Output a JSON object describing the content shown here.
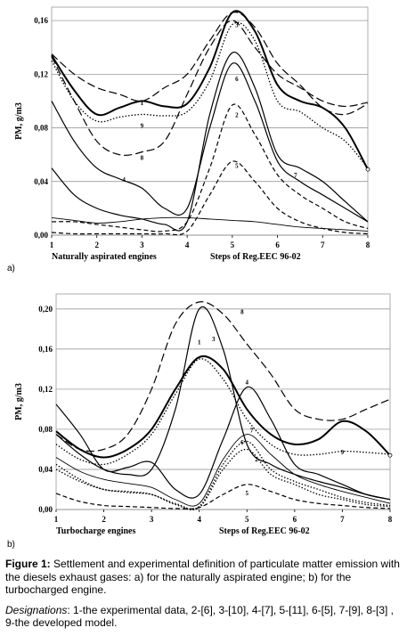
{
  "chart_data": [
    {
      "panel_label": "a)",
      "type": "line",
      "ylabel": "PM, g/m3",
      "xlabel": "Steps of Reg.EEC 96-02",
      "subtitle": "Naturally aspirated engines",
      "x": [
        1,
        2,
        3,
        4,
        5,
        6,
        7,
        8
      ],
      "xlim": [
        1,
        8
      ],
      "ylim": [
        0,
        0.17
      ],
      "yticks": [
        "0,00",
        "0,04",
        "0,08",
        "0,12",
        "0,16"
      ],
      "ytick_values": [
        0,
        0.04,
        0.08,
        0.12,
        0.16
      ],
      "xticks": [
        "1",
        "2",
        "3",
        "4",
        "5",
        "6",
        "7",
        "8"
      ],
      "series": [
        {
          "name": "1",
          "style": "solid-thick",
          "label_at": [
            3,
            0.097
          ],
          "x": [
            1,
            1.5,
            2,
            2.5,
            3,
            3.5,
            4,
            4.5,
            5,
            5.5,
            6,
            6.5,
            7,
            7.5,
            8
          ],
          "values": [
            0.134,
            0.108,
            0.09,
            0.095,
            0.1,
            0.096,
            0.098,
            0.125,
            0.166,
            0.152,
            0.112,
            0.1,
            0.095,
            0.08,
            0.049
          ]
        },
        {
          "name": "9",
          "style": "dotted",
          "label_at": [
            3,
            0.08
          ],
          "x": [
            1,
            1.5,
            2,
            2.5,
            3,
            3.5,
            4,
            4.5,
            5,
            5.5,
            6,
            6.5,
            7,
            7.5,
            8
          ],
          "values": [
            0.13,
            0.1,
            0.085,
            0.088,
            0.09,
            0.089,
            0.092,
            0.115,
            0.157,
            0.145,
            0.1,
            0.092,
            0.08,
            0.07,
            0.05
          ]
        },
        {
          "name": "2",
          "style": "dashed",
          "label_at": [
            5.1,
            0.088
          ],
          "x": [
            1,
            1.5,
            2,
            2.5,
            3,
            3.5,
            4,
            4.5,
            5,
            5.5,
            6,
            6.5,
            7,
            7.5,
            8
          ],
          "values": [
            0.01,
            0.01,
            0.008,
            0.006,
            0.004,
            0.003,
            0.01,
            0.05,
            0.097,
            0.075,
            0.045,
            0.03,
            0.02,
            0.01,
            0.005
          ]
        },
        {
          "name": "3",
          "style": "dashed-long",
          "label_at": [
            5.1,
            0.155
          ],
          "x": [
            1,
            1.5,
            2,
            2.5,
            3,
            3.5,
            4,
            4.5,
            5,
            5.5,
            6,
            6.5,
            7,
            7.5,
            8
          ],
          "values": [
            0.135,
            0.12,
            0.11,
            0.105,
            0.1,
            0.11,
            0.12,
            0.145,
            0.166,
            0.155,
            0.128,
            0.112,
            0.095,
            0.09,
            0.098
          ]
        },
        {
          "name": "4",
          "style": "solid",
          "label_at": [
            2.6,
            0.04
          ],
          "x": [
            1,
            1.5,
            2,
            2.5,
            3,
            3.5,
            4,
            4.5,
            5,
            5.5,
            6,
            6.5,
            7,
            7.5,
            8
          ],
          "values": [
            0.1,
            0.07,
            0.05,
            0.042,
            0.035,
            0.02,
            0.02,
            0.08,
            0.128,
            0.1,
            0.055,
            0.04,
            0.03,
            0.02,
            0.01
          ]
        },
        {
          "name": "5",
          "style": "dashed",
          "label_at": [
            5.1,
            0.05
          ],
          "x": [
            1,
            1.5,
            2,
            2.5,
            3,
            3.5,
            4,
            4.5,
            5,
            5.5,
            6,
            6.5,
            7,
            7.5,
            8
          ],
          "values": [
            0.002,
            0.001,
            0.001,
            0.001,
            0.001,
            0.001,
            0.003,
            0.03,
            0.055,
            0.04,
            0.02,
            0.01,
            0.005,
            0.002,
            0.001
          ]
        },
        {
          "name": "6",
          "style": "solid",
          "label_at": [
            5.1,
            0.115
          ],
          "x": [
            1,
            1.5,
            2,
            2.5,
            3,
            3.5,
            4,
            4.5,
            5,
            5.5,
            6,
            6.5,
            7,
            7.5,
            8
          ],
          "values": [
            0.05,
            0.03,
            0.02,
            0.015,
            0.012,
            0.008,
            0.01,
            0.09,
            0.136,
            0.11,
            0.06,
            0.05,
            0.04,
            0.025,
            0.01
          ]
        },
        {
          "name": "7",
          "style": "solid-thin",
          "label_at": [
            6.4,
            0.043
          ],
          "x": [
            1,
            1.5,
            2,
            2.5,
            3,
            3.5,
            4,
            4.5,
            5,
            5.5,
            6,
            6.5,
            7,
            7.5,
            8
          ],
          "values": [
            0.013,
            0.011,
            0.009,
            0.01,
            0.012,
            0.013,
            0.013,
            0.012,
            0.011,
            0.01,
            0.008,
            0.006,
            0.005,
            0.004,
            0.003
          ]
        },
        {
          "name": "8",
          "style": "dashed-long",
          "label_at": [
            3,
            0.056
          ],
          "x": [
            1,
            1.5,
            2,
            2.5,
            3,
            3.5,
            4,
            4.5,
            5,
            5.5,
            6,
            6.5,
            7,
            7.5,
            8
          ],
          "values": [
            0.133,
            0.1,
            0.07,
            0.06,
            0.062,
            0.07,
            0.105,
            0.14,
            0.16,
            0.14,
            0.12,
            0.11,
            0.1,
            0.096,
            0.099
          ]
        }
      ]
    },
    {
      "panel_label": "b)",
      "type": "line",
      "ylabel": "PM, g/m3",
      "xlabel": "Steps of Reg.EEC 96-02",
      "subtitle": "Turbocharge engines",
      "x": [
        1,
        2,
        3,
        4,
        5,
        6,
        7,
        8
      ],
      "xlim": [
        1,
        8
      ],
      "ylim": [
        0,
        0.215
      ],
      "yticks": [
        "0,00",
        "0,04",
        "0,08",
        "0,12",
        "0,16",
        "0,20"
      ],
      "ytick_values": [
        0,
        0.04,
        0.08,
        0.12,
        0.16,
        0.2
      ],
      "xticks": [
        "1",
        "2",
        "3",
        "4",
        "5",
        "6",
        "7",
        "8"
      ],
      "series": [
        {
          "name": "1",
          "style": "solid-thick",
          "label_at": [
            4,
            0.165
          ],
          "x": [
            1,
            1.5,
            2,
            2.5,
            3,
            3.5,
            4,
            4.5,
            5,
            5.5,
            6,
            6.5,
            7,
            7.5,
            8
          ],
          "values": [
            0.078,
            0.06,
            0.052,
            0.06,
            0.08,
            0.12,
            0.152,
            0.14,
            0.1,
            0.075,
            0.065,
            0.07,
            0.088,
            0.078,
            0.054
          ]
        },
        {
          "name": "9",
          "style": "dotted",
          "label_at": [
            7,
            0.055
          ],
          "x": [
            1,
            1.5,
            2,
            2.5,
            3,
            3.5,
            4,
            4.5,
            5,
            5.5,
            6,
            6.5,
            7,
            7.5,
            8
          ],
          "values": [
            0.065,
            0.05,
            0.045,
            0.055,
            0.075,
            0.115,
            0.15,
            0.13,
            0.09,
            0.065,
            0.055,
            0.055,
            0.058,
            0.057,
            0.055
          ]
        },
        {
          "name": "2",
          "style": "dotted",
          "label_at": [
            5.2,
            0.048
          ],
          "x": [
            1,
            1.5,
            2,
            2.5,
            3,
            3.5,
            4,
            4.5,
            5,
            5.5,
            6,
            6.5,
            7,
            7.5,
            8
          ],
          "values": [
            0.045,
            0.03,
            0.02,
            0.018,
            0.015,
            0.005,
            0.002,
            0.04,
            0.06,
            0.035,
            0.025,
            0.015,
            0.01,
            0.005,
            0.003
          ]
        },
        {
          "name": "3",
          "style": "solid",
          "label_at": [
            4.3,
            0.168
          ],
          "x": [
            1,
            1.5,
            2,
            2.5,
            3,
            3.5,
            4,
            4.5,
            5,
            5.5,
            6,
            6.5,
            7,
            7.5,
            8
          ],
          "values": [
            0.075,
            0.055,
            0.04,
            0.035,
            0.04,
            0.1,
            0.2,
            0.16,
            0.065,
            0.045,
            0.035,
            0.028,
            0.022,
            0.015,
            0.01
          ]
        },
        {
          "name": "4",
          "style": "solid",
          "label_at": [
            5,
            0.125
          ],
          "x": [
            1,
            1.5,
            2,
            2.5,
            3,
            3.5,
            4,
            4.5,
            5,
            5.5,
            6,
            6.5,
            7,
            7.5,
            8
          ],
          "values": [
            0.105,
            0.075,
            0.04,
            0.042,
            0.047,
            0.02,
            0.015,
            0.07,
            0.122,
            0.09,
            0.045,
            0.035,
            0.025,
            0.015,
            0.01
          ]
        },
        {
          "name": "5",
          "style": "dashed",
          "label_at": [
            5,
            0.014
          ],
          "x": [
            1,
            1.5,
            2,
            2.5,
            3,
            3.5,
            4,
            4.5,
            5,
            5.5,
            6,
            6.5,
            7,
            7.5,
            8
          ],
          "values": [
            0.016,
            0.008,
            0.004,
            0.003,
            0.002,
            0.001,
            0.002,
            0.015,
            0.025,
            0.018,
            0.01,
            0.006,
            0.004,
            0.002,
            0.001
          ]
        },
        {
          "name": "6",
          "style": "dotted",
          "label_at": [
            4.9,
            0.065
          ],
          "x": [
            1,
            1.5,
            2,
            2.5,
            3,
            3.5,
            4,
            4.5,
            5,
            5.5,
            6,
            6.5,
            7,
            7.5,
            8
          ],
          "values": [
            0.04,
            0.028,
            0.02,
            0.017,
            0.015,
            0.006,
            0.003,
            0.045,
            0.068,
            0.04,
            0.028,
            0.02,
            0.012,
            0.007,
            0.004
          ]
        },
        {
          "name": "7",
          "style": "solid-thin",
          "label_at": [
            5.1,
            0.077
          ],
          "x": [
            1,
            1.5,
            2,
            2.5,
            3,
            3.5,
            4,
            4.5,
            5,
            5.5,
            6,
            6.5,
            7,
            7.5,
            8
          ],
          "values": [
            0.052,
            0.038,
            0.03,
            0.026,
            0.022,
            0.01,
            0.006,
            0.05,
            0.075,
            0.055,
            0.035,
            0.025,
            0.018,
            0.012,
            0.006
          ]
        },
        {
          "name": "8",
          "style": "dashed-long",
          "label_at": [
            4.9,
            0.195
          ],
          "x": [
            1,
            1.5,
            2,
            2.5,
            3,
            3.5,
            4,
            4.5,
            5,
            5.5,
            6,
            6.5,
            7,
            7.5,
            8
          ],
          "values": [
            0.075,
            0.06,
            0.06,
            0.075,
            0.12,
            0.185,
            0.207,
            0.195,
            0.165,
            0.135,
            0.1,
            0.09,
            0.09,
            0.1,
            0.11
          ]
        }
      ]
    }
  ],
  "caption": {
    "figure_label": "Figure 1:",
    "text": " Settlement and experimental definition of particulate matter emission with the diesels exhaust gases: a) for the naturally aspirated engine; b) for the turbocharged engine.",
    "designations_label": "Designations",
    "designations_text": ": 1-the experimental data, 2-[6], 3-[10], 4-[7], 5-[11], 6-[5], 7-[9], 8-[3] , 9-the developed model."
  }
}
